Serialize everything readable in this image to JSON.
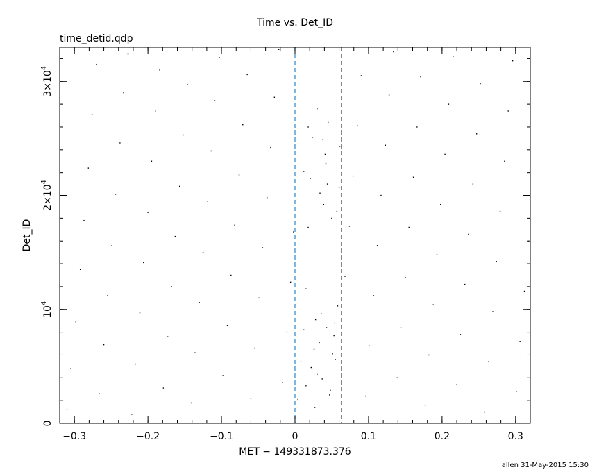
{
  "chart_data": {
    "type": "scatter",
    "title": "Time vs. Det_ID",
    "subtitle": "time_detid.qdp",
    "xlabel": "MET − 149331873.376",
    "ylabel": "Det_ID",
    "xlim": [
      -0.32,
      0.32
    ],
    "ylim": [
      0,
      33000
    ],
    "x_ticks": [
      {
        "value": -0.3,
        "label": "−0.3"
      },
      {
        "value": -0.2,
        "label": "−0.2"
      },
      {
        "value": -0.1,
        "label": "−0.1"
      },
      {
        "value": 0,
        "label": "0"
      },
      {
        "value": 0.1,
        "label": "0.1"
      },
      {
        "value": 0.2,
        "label": "0.2"
      },
      {
        "value": 0.3,
        "label": "0.3"
      }
    ],
    "y_ticks": [
      {
        "value": 0,
        "label": "0",
        "mantissa": "",
        "exponent": ""
      },
      {
        "value": 10000,
        "label": "10^4",
        "mantissa": "10",
        "exponent": "4"
      },
      {
        "value": 20000,
        "label": "2×10^4",
        "mantissa": "2×10",
        "exponent": "4"
      },
      {
        "value": 30000,
        "label": "3×10^4",
        "mantissa": "3×10",
        "exponent": "4"
      }
    ],
    "vertical_lines": [
      {
        "x": 0.0,
        "color": "#3a8fd0",
        "style": "dashed"
      },
      {
        "x": 0.063,
        "color": "#3a8fd0",
        "style": "dashed"
      }
    ],
    "grid": false,
    "point_color": "#000000",
    "points": [
      [
        -0.31,
        1200
      ],
      [
        -0.305,
        4800
      ],
      [
        -0.298,
        8900
      ],
      [
        -0.292,
        13500
      ],
      [
        -0.287,
        17800
      ],
      [
        -0.281,
        22400
      ],
      [
        -0.276,
        27100
      ],
      [
        -0.27,
        31500
      ],
      [
        -0.266,
        2600
      ],
      [
        -0.26,
        6900
      ],
      [
        -0.255,
        11200
      ],
      [
        -0.249,
        15600
      ],
      [
        -0.244,
        20100
      ],
      [
        -0.238,
        24600
      ],
      [
        -0.233,
        29000
      ],
      [
        -0.227,
        32400
      ],
      [
        -0.222,
        800
      ],
      [
        -0.217,
        5200
      ],
      [
        -0.211,
        9700
      ],
      [
        -0.206,
        14100
      ],
      [
        -0.2,
        18500
      ],
      [
        -0.195,
        23000
      ],
      [
        -0.19,
        27400
      ],
      [
        -0.184,
        31000
      ],
      [
        -0.179,
        3100
      ],
      [
        -0.173,
        7600
      ],
      [
        -0.168,
        12000
      ],
      [
        -0.163,
        16400
      ],
      [
        -0.157,
        20800
      ],
      [
        -0.152,
        25300
      ],
      [
        -0.146,
        29700
      ],
      [
        -0.141,
        1800
      ],
      [
        -0.136,
        6200
      ],
      [
        -0.13,
        10600
      ],
      [
        -0.125,
        15000
      ],
      [
        -0.119,
        19500
      ],
      [
        -0.114,
        23900
      ],
      [
        -0.109,
        28300
      ],
      [
        -0.103,
        32100
      ],
      [
        -0.098,
        4200
      ],
      [
        -0.092,
        8600
      ],
      [
        -0.087,
        13000
      ],
      [
        -0.082,
        17400
      ],
      [
        -0.076,
        21800
      ],
      [
        -0.071,
        26200
      ],
      [
        -0.065,
        30600
      ],
      [
        -0.06,
        2200
      ],
      [
        -0.055,
        6600
      ],
      [
        -0.049,
        11000
      ],
      [
        -0.044,
        15400
      ],
      [
        -0.038,
        19800
      ],
      [
        -0.033,
        24200
      ],
      [
        -0.028,
        28600
      ],
      [
        -0.022,
        32800
      ],
      [
        -0.017,
        3600
      ],
      [
        -0.011,
        8000
      ],
      [
        -0.006,
        12400
      ],
      [
        -0.002,
        16800
      ],
      [
        0.004,
        2100
      ],
      [
        0.008,
        5400
      ],
      [
        0.012,
        8200
      ],
      [
        0.015,
        11800
      ],
      [
        0.018,
        17200
      ],
      [
        0.021,
        21500
      ],
      [
        0.024,
        25100
      ],
      [
        0.027,
        1400
      ],
      [
        0.03,
        4300
      ],
      [
        0.033,
        7100
      ],
      [
        0.036,
        9600
      ],
      [
        0.039,
        19200
      ],
      [
        0.042,
        22800
      ],
      [
        0.045,
        26400
      ],
      [
        0.048,
        2900
      ],
      [
        0.051,
        6100
      ],
      [
        0.054,
        8800
      ],
      [
        0.057,
        18600
      ],
      [
        0.06,
        20700
      ],
      [
        0.061,
        24300
      ],
      [
        0.015,
        3300
      ],
      [
        0.022,
        4900
      ],
      [
        0.028,
        9100
      ],
      [
        0.034,
        20200
      ],
      [
        0.041,
        23600
      ],
      [
        0.047,
        2500
      ],
      [
        0.053,
        7700
      ],
      [
        0.058,
        10300
      ],
      [
        0.018,
        26000
      ],
      [
        0.03,
        27600
      ],
      [
        0.044,
        21000
      ],
      [
        0.05,
        18000
      ],
      [
        0.026,
        6500
      ],
      [
        0.037,
        3900
      ],
      [
        0.043,
        8400
      ],
      [
        0.055,
        5600
      ],
      [
        0.012,
        22100
      ],
      [
        0.038,
        24900
      ],
      [
        0.068,
        12900
      ],
      [
        0.074,
        17300
      ],
      [
        0.079,
        21700
      ],
      [
        0.085,
        26100
      ],
      [
        0.09,
        30500
      ],
      [
        0.096,
        2400
      ],
      [
        0.101,
        6800
      ],
      [
        0.107,
        11200
      ],
      [
        0.112,
        15600
      ],
      [
        0.117,
        20000
      ],
      [
        0.123,
        24400
      ],
      [
        0.128,
        28800
      ],
      [
        0.134,
        32600
      ],
      [
        0.139,
        4000
      ],
      [
        0.144,
        8400
      ],
      [
        0.15,
        12800
      ],
      [
        0.155,
        17200
      ],
      [
        0.161,
        21600
      ],
      [
        0.166,
        26000
      ],
      [
        0.171,
        30400
      ],
      [
        0.177,
        1600
      ],
      [
        0.182,
        6000
      ],
      [
        0.188,
        10400
      ],
      [
        0.193,
        14800
      ],
      [
        0.198,
        19200
      ],
      [
        0.204,
        23600
      ],
      [
        0.209,
        28000
      ],
      [
        0.215,
        32200
      ],
      [
        0.22,
        3400
      ],
      [
        0.225,
        7800
      ],
      [
        0.231,
        12200
      ],
      [
        0.236,
        16600
      ],
      [
        0.242,
        21000
      ],
      [
        0.247,
        25400
      ],
      [
        0.252,
        29800
      ],
      [
        0.258,
        1000
      ],
      [
        0.263,
        5400
      ],
      [
        0.269,
        9800
      ],
      [
        0.274,
        14200
      ],
      [
        0.279,
        18600
      ],
      [
        0.285,
        23000
      ],
      [
        0.29,
        27400
      ],
      [
        0.296,
        31800
      ],
      [
        0.301,
        2800
      ],
      [
        0.306,
        7200
      ],
      [
        0.312,
        11600
      ],
      [
        0.317,
        16000
      ]
    ]
  },
  "footer": {
    "stamp": "allen 31-May-2015 15:30"
  }
}
